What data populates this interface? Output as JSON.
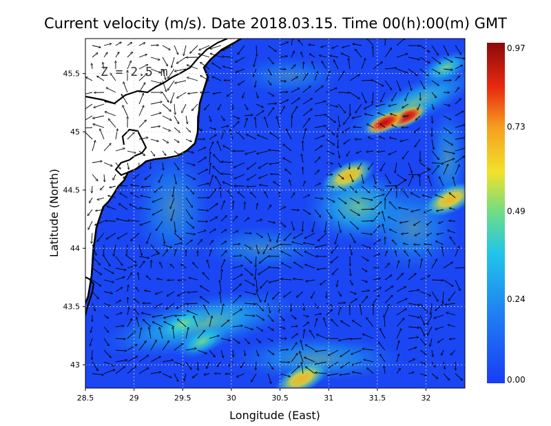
{
  "chart_data": {
    "type": "heatmap",
    "title": "Current velocity (m/s). Date 2018.03.15. Time 00(h):00(m) GMT",
    "xlabel": "Longitude (East)",
    "ylabel": "Latitude (North)",
    "annotation": "Z = 2.5 m",
    "xlim": [
      28.5,
      32.4
    ],
    "ylim": [
      42.8,
      45.8
    ],
    "x_ticks": [
      "28.5",
      "29",
      "29.5",
      "30",
      "30.5",
      "31",
      "31.5",
      "32"
    ],
    "x_tick_values": [
      28.5,
      29,
      29.5,
      30,
      30.5,
      31,
      31.5,
      32
    ],
    "y_ticks": [
      "43",
      "43.5",
      "44",
      "44.5",
      "45",
      "45.5"
    ],
    "y_tick_values": [
      43,
      43.5,
      44,
      44.5,
      45,
      45.5
    ],
    "grid": true,
    "colorbar": {
      "ticks": [
        "0.00",
        "0.24",
        "0.49",
        "0.73",
        "0.97"
      ],
      "tick_values": [
        0.0,
        0.24,
        0.49,
        0.73,
        0.97
      ],
      "min": 0.0,
      "max": 0.97,
      "colors": [
        "#1a3cf5",
        "#1f8cf0",
        "#20c8e8",
        "#7ee07a",
        "#f2e22a",
        "#f5a020",
        "#e82a10",
        "#8a0a0a"
      ]
    },
    "hotspots": [
      {
        "lon": 31.8,
        "lat": 45.13,
        "speed": 0.95
      },
      {
        "lon": 31.58,
        "lat": 45.08,
        "speed": 0.9
      },
      {
        "lon": 32.25,
        "lat": 44.42,
        "speed": 0.75
      },
      {
        "lon": 31.2,
        "lat": 44.62,
        "speed": 0.62
      },
      {
        "lon": 30.72,
        "lat": 42.88,
        "speed": 0.7
      },
      {
        "lon": 29.7,
        "lat": 43.2,
        "speed": 0.5
      },
      {
        "lon": 29.5,
        "lat": 43.35,
        "speed": 0.45
      },
      {
        "lon": 32.2,
        "lat": 45.55,
        "speed": 0.5
      }
    ]
  }
}
